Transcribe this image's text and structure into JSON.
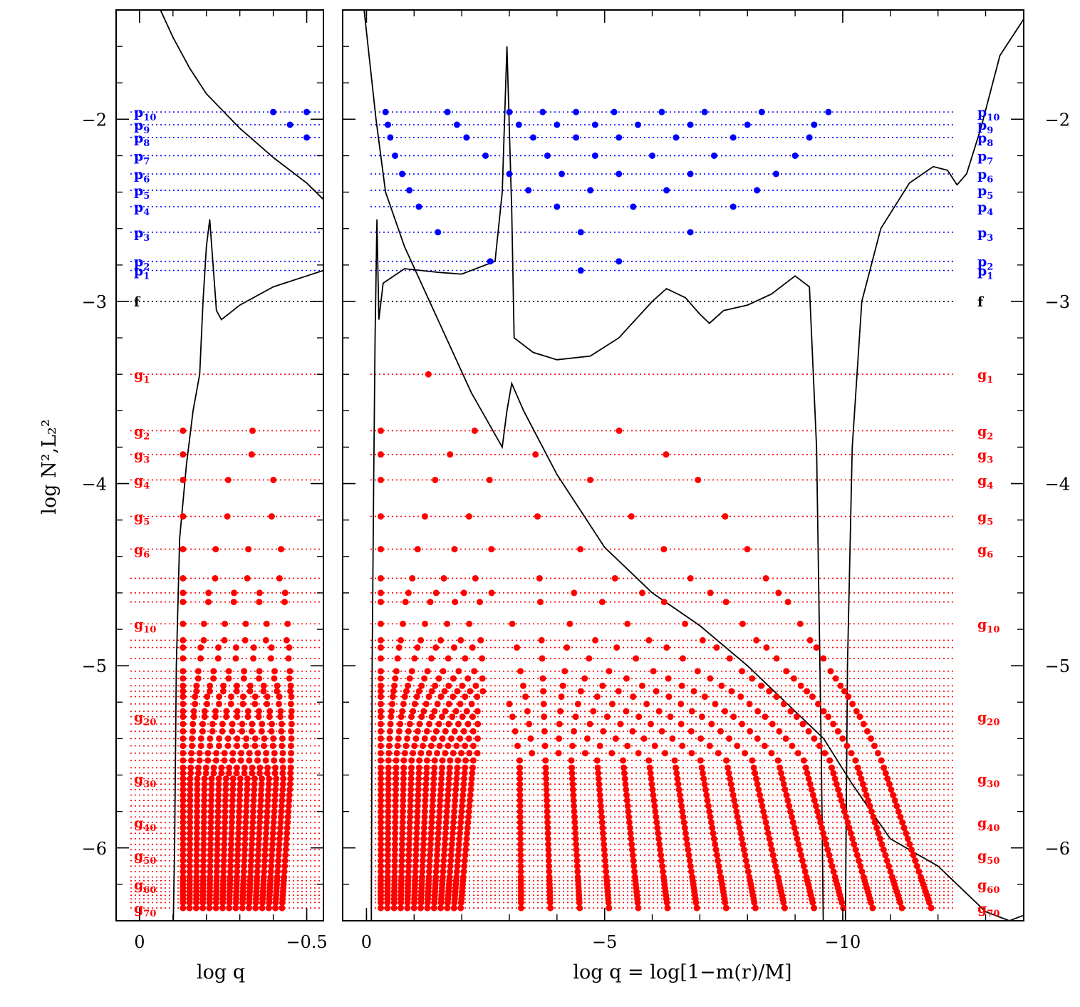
{
  "chart_data": {
    "type": "scatter",
    "title": "",
    "ylabel": "log N²,L₂²",
    "ylim": [
      -6.4,
      -1.4
    ],
    "y_ticks": [
      -2,
      -3,
      -4,
      -5,
      -6
    ],
    "y_tick_labels": [
      "−2",
      "−3",
      "−4",
      "−5",
      "−6"
    ],
    "colors": {
      "p": "#0000ff",
      "f": "#000000",
      "g": "#ff0000",
      "curves": "#000000"
    },
    "panels": [
      {
        "id": "left",
        "xlabel": "log q",
        "xlim": [
          0.07,
          -0.55
        ],
        "x_ticks": [
          0,
          -0.5
        ],
        "x_tick_labels": [
          "0",
          "−0.5"
        ]
      },
      {
        "id": "main",
        "xlabel": "log q = log[1−m(r)/M]",
        "xlim": [
          0.5,
          -13.8
        ],
        "x_ticks": [
          0,
          -5,
          -10
        ],
        "x_tick_labels": [
          "0",
          "−5",
          "−10"
        ]
      }
    ],
    "modes": {
      "p": [
        {
          "label": "p",
          "sub": "10",
          "y": -1.96
        },
        {
          "label": "p",
          "sub": "9",
          "y": -2.03
        },
        {
          "label": "p",
          "sub": "8",
          "y": -2.1
        },
        {
          "label": "p",
          "sub": "7",
          "y": -2.2
        },
        {
          "label": "p",
          "sub": "6",
          "y": -2.3
        },
        {
          "label": "p",
          "sub": "5",
          "y": -2.39
        },
        {
          "label": "p",
          "sub": "4",
          "y": -2.48
        },
        {
          "label": "p",
          "sub": "3",
          "y": -2.62
        },
        {
          "label": "p",
          "sub": "2",
          "y": -2.78
        },
        {
          "label": "p",
          "sub": "1",
          "y": -2.83
        }
      ],
      "f": {
        "label": "f",
        "sub": "",
        "y": -3.0
      },
      "g": [
        {
          "label": "g",
          "sub": "1",
          "y": -3.4
        },
        {
          "label": "g",
          "sub": "2",
          "y": -3.71
        },
        {
          "label": "g",
          "sub": "3",
          "y": -3.84
        },
        {
          "label": "g",
          "sub": "4",
          "y": -3.98
        },
        {
          "label": "g",
          "sub": "5",
          "y": -4.18
        },
        {
          "label": "g",
          "sub": "6",
          "y": -4.36
        },
        {
          "label": "g",
          "sub": "10",
          "y": -4.77
        },
        {
          "label": "g",
          "sub": "20",
          "y": -5.28
        },
        {
          "label": "g",
          "sub": "30",
          "y": -5.62
        },
        {
          "label": "g",
          "sub": "40",
          "y": -5.86
        },
        {
          "label": "g",
          "sub": "50",
          "y": -6.04
        },
        {
          "label": "g",
          "sub": "60",
          "y": -6.2
        },
        {
          "label": "g",
          "sub": "70",
          "y": -6.33
        }
      ],
      "g_extra_levels": [
        -4.52,
        -4.6,
        -4.65,
        -4.86,
        -4.9,
        -4.96,
        -5.03,
        -5.07,
        -5.11,
        -5.14,
        -5.17,
        -5.21,
        -5.25,
        -5.32,
        -5.36,
        -5.4,
        -5.44,
        -5.48,
        -5.52,
        -5.56,
        -5.59,
        -5.65,
        -5.68,
        -5.71,
        -5.74,
        -5.77,
        -5.8,
        -5.83,
        -5.89,
        -5.92,
        -5.95,
        -5.98,
        -6.01,
        -6.07,
        -6.1,
        -6.13,
        -6.16,
        -6.18,
        -6.22,
        -6.24,
        -6.26,
        -6.28,
        -6.3
      ]
    },
    "p_node_positions": [
      {
        "mode": "p10",
        "left": [
          -0.4,
          -0.5
        ],
        "main": [
          -0.4,
          -1.7,
          -3.0,
          -3.7,
          -4.4,
          -5.2,
          -6.2,
          -7.1,
          -8.3,
          -9.7
        ]
      },
      {
        "mode": "p9",
        "left": [
          -0.45
        ],
        "main": [
          -0.45,
          -1.9,
          -3.2,
          -4.0,
          -4.8,
          -5.7,
          -6.8,
          -8.0,
          -9.4
        ]
      },
      {
        "mode": "p8",
        "left": [
          -0.5
        ],
        "main": [
          -0.5,
          -2.1,
          -3.5,
          -4.4,
          -5.3,
          -6.5,
          -7.7,
          -9.3
        ]
      },
      {
        "mode": "p7",
        "left": [],
        "main": [
          -0.6,
          -2.5,
          -3.8,
          -4.8,
          -6.0,
          -7.3,
          -9.0
        ]
      },
      {
        "mode": "p6",
        "left": [],
        "main": [
          -0.75,
          -3.0,
          -4.1,
          -5.3,
          -6.8,
          -8.6
        ]
      },
      {
        "mode": "p5",
        "left": [],
        "main": [
          -0.9,
          -3.4,
          -4.7,
          -6.3,
          -8.2
        ]
      },
      {
        "mode": "p4",
        "left": [],
        "main": [
          -1.1,
          -4.0,
          -5.6,
          -7.7
        ]
      },
      {
        "mode": "p3",
        "left": [],
        "main": [
          -1.5,
          -4.5,
          -6.8
        ]
      },
      {
        "mode": "p2",
        "left": [],
        "main": [
          -2.6,
          -5.3
        ]
      },
      {
        "mode": "p1",
        "left": [],
        "main": [
          -4.5
        ]
      }
    ],
    "curves": {
      "L2_description": "Lamb frequency: steeply decreasing line from upper left to lower right with a spike near log q = -3",
      "N2_description": "Brunt-Vaisala frequency: sharp peaks near log q = -0.2 (left panel) and -3.0, plateau around -3.3 to -2.9, dips to -6.4 near -9.6 and -10.1"
    }
  }
}
